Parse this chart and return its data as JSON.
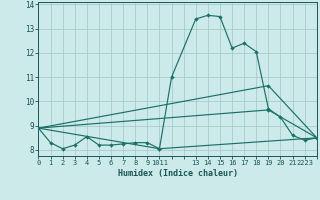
{
  "xlabel": "Humidex (Indice chaleur)",
  "bg_color": "#cdeaea",
  "grid_color": "#a8cccc",
  "line_color": "#1a7068",
  "series": [
    [
      0,
      8.9
    ],
    [
      1,
      8.3
    ],
    [
      2,
      8.05
    ],
    [
      3,
      8.2
    ],
    [
      4,
      8.55
    ],
    [
      5,
      8.2
    ],
    [
      6,
      8.2
    ],
    [
      7,
      8.25
    ],
    [
      8,
      8.3
    ],
    [
      9,
      8.3
    ],
    [
      10,
      8.05
    ],
    [
      11,
      11.0
    ],
    [
      13,
      13.4
    ],
    [
      14,
      13.55
    ],
    [
      15,
      13.5
    ],
    [
      16,
      12.2
    ],
    [
      17,
      12.4
    ],
    [
      18,
      12.05
    ],
    [
      19,
      9.7
    ],
    [
      20,
      9.35
    ],
    [
      21,
      8.6
    ],
    [
      22,
      8.4
    ],
    [
      23,
      8.5
    ]
  ],
  "series2": [
    [
      0,
      8.9
    ],
    [
      10,
      8.05
    ],
    [
      23,
      8.5
    ]
  ],
  "series3": [
    [
      0,
      8.9
    ],
    [
      19,
      10.65
    ],
    [
      23,
      8.5
    ]
  ],
  "series4": [
    [
      0,
      8.9
    ],
    [
      19,
      9.65
    ],
    [
      23,
      8.5
    ]
  ],
  "xlim": [
    0,
    23
  ],
  "ylim": [
    7.75,
    14.1
  ],
  "yticks": [
    8,
    9,
    10,
    11,
    12,
    13,
    14
  ],
  "xtick_labels": [
    "0",
    "1",
    "2",
    "3",
    "4",
    "5",
    "6",
    "7",
    "8",
    "9",
    "1011",
    "",
    "13",
    "14",
    "15",
    "16",
    "17",
    "18",
    "19",
    "20",
    "21",
    "2223",
    ""
  ]
}
